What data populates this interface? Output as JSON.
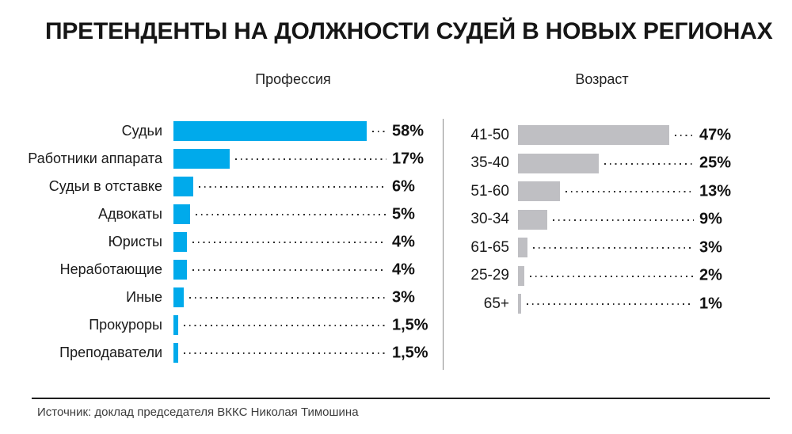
{
  "title": "ПРЕТЕНДЕНТЫ НА ДОЛЖНОСТИ СУДЕЙ В НОВЫХ РЕГИОНАХ",
  "source": "Источник: доклад председателя ВККС Николая Тимошина",
  "colors": {
    "profession_bar": "#00AAEB",
    "age_bar": "#BFBFC3",
    "leader_dots": "#2e2e2e",
    "text": "#161616",
    "source_text": "#3c3c3c"
  },
  "chart_data": [
    {
      "type": "bar",
      "orientation": "horizontal",
      "title": "Профессия",
      "categories": [
        "Судьи",
        "Работники аппарата",
        "Судьи в отставке",
        "Адвокаты",
        "Юристы",
        "Неработающие",
        "Иные",
        "Прокуроры",
        "Преподаватели"
      ],
      "values": [
        58,
        17,
        6,
        5,
        4,
        4,
        3,
        1.5,
        1.5
      ],
      "value_labels": [
        "58%",
        "17%",
        "6%",
        "5%",
        "4%",
        "4%",
        "3%",
        "1,5%",
        "1,5%"
      ],
      "bar_color": "#00AAEB",
      "xlim": [
        0,
        60
      ],
      "grid": false,
      "legend": false,
      "value_label_position": "right-of-leader-line"
    },
    {
      "type": "bar",
      "orientation": "horizontal",
      "title": "Возраст",
      "categories": [
        "41-50",
        "35-40",
        "51-60",
        "30-34",
        "61-65",
        "25-29",
        "65+"
      ],
      "values": [
        47,
        25,
        13,
        9,
        3,
        2,
        1
      ],
      "value_labels": [
        "47%",
        "25%",
        "13%",
        "9%",
        "3%",
        "2%",
        "1%"
      ],
      "bar_color": "#BFBFC3",
      "xlim": [
        0,
        50
      ],
      "grid": false,
      "legend": false,
      "value_label_position": "right-of-leader-line"
    }
  ]
}
